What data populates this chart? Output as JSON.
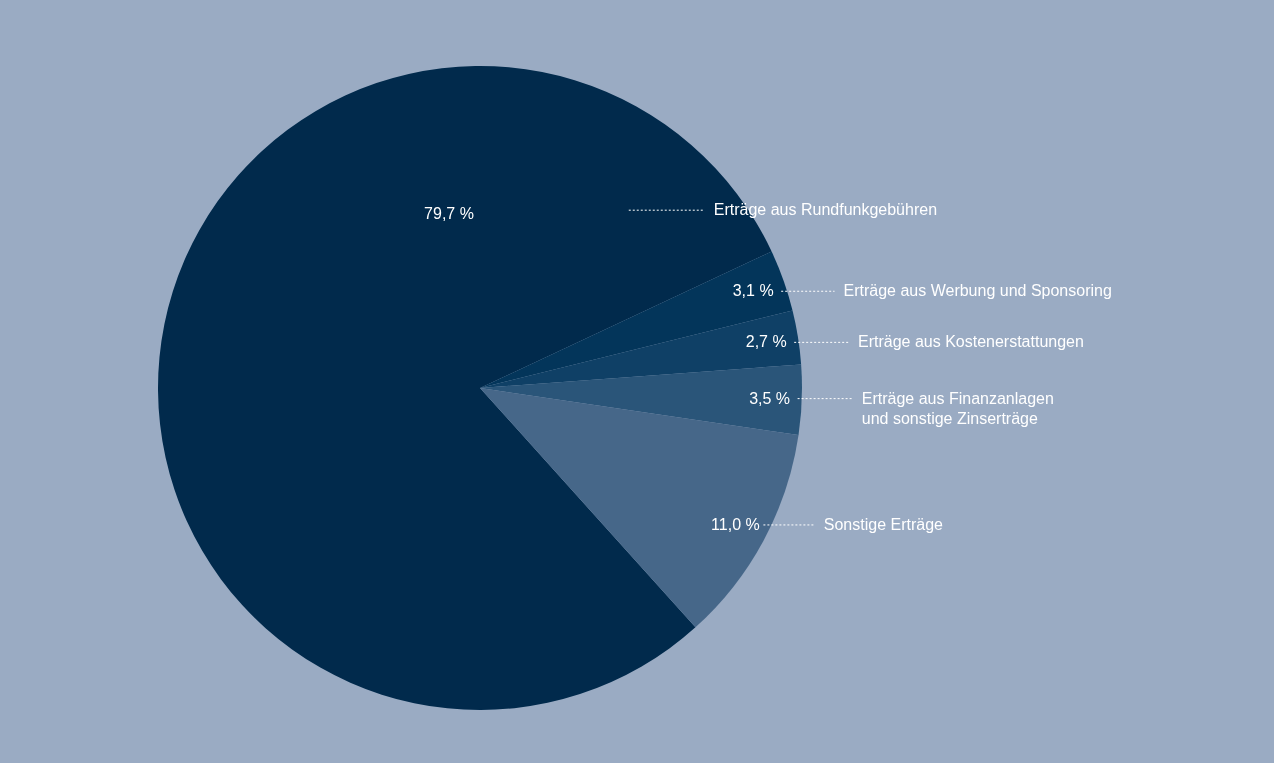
{
  "chart_data": {
    "type": "pie",
    "categories": [
      "Erträge aus Rundfunkgebühren",
      "Erträge aus Werbung und Sponsoring",
      "Erträge aus Kostenerstattungen",
      "Erträge aus Finanzanlagen\nund sonstige Zinserträge",
      "Sonstige Erträge"
    ],
    "values": [
      79.7,
      3.1,
      2.7,
      3.5,
      11.0
    ],
    "value_labels": [
      "79,7 %",
      "3,1 %",
      "2,7 %",
      "3,5 %",
      "11,0 %"
    ],
    "colors": [
      "#012a4c",
      "#03355a",
      "#0f4066",
      "#2a5579",
      "#466789"
    ]
  }
}
